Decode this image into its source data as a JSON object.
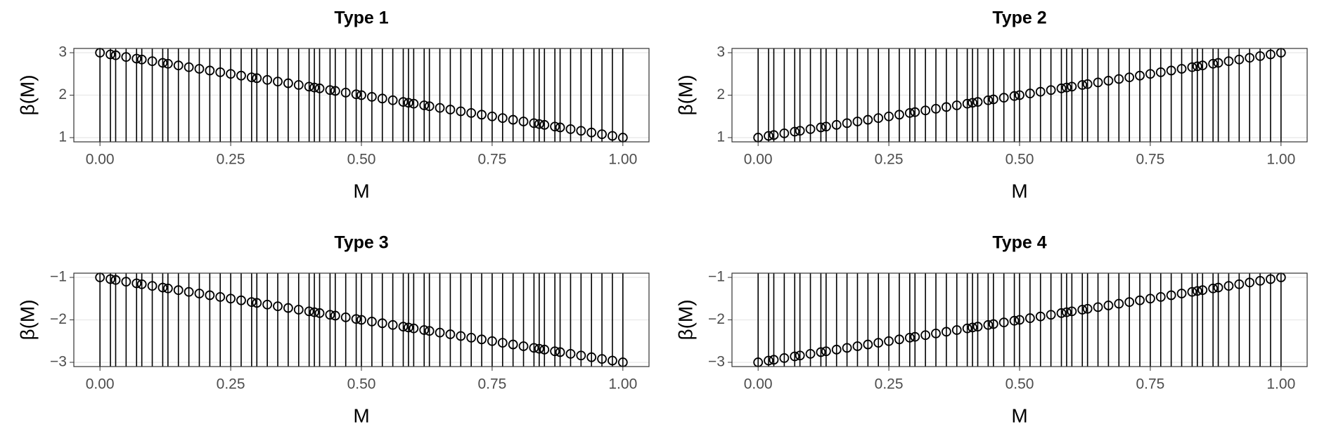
{
  "chart_data": [
    {
      "type": "scatter",
      "title": "Type 1",
      "x_label": "M",
      "y_label": "β(M)",
      "vlines": true,
      "grid": true,
      "color": "#000000",
      "xlim": [
        -0.05,
        1.05
      ],
      "ylim": [
        0.9,
        3.1
      ],
      "xticks": [
        {
          "value": 0,
          "label": "0.00"
        },
        {
          "value": 0.25,
          "label": "0.25"
        },
        {
          "value": 0.5,
          "label": "0.50"
        },
        {
          "value": 0.75,
          "label": "0.75"
        },
        {
          "value": 1,
          "label": "1.00"
        }
      ],
      "yticks": [
        1,
        2,
        3
      ],
      "x": [
        0.0,
        0.02,
        0.03,
        0.05,
        0.07,
        0.08,
        0.1,
        0.12,
        0.13,
        0.15,
        0.17,
        0.19,
        0.21,
        0.23,
        0.25,
        0.27,
        0.29,
        0.3,
        0.32,
        0.34,
        0.36,
        0.38,
        0.4,
        0.41,
        0.42,
        0.44,
        0.45,
        0.47,
        0.49,
        0.5,
        0.52,
        0.54,
        0.56,
        0.58,
        0.59,
        0.6,
        0.62,
        0.63,
        0.65,
        0.67,
        0.69,
        0.71,
        0.73,
        0.75,
        0.77,
        0.79,
        0.81,
        0.83,
        0.84,
        0.85,
        0.87,
        0.88,
        0.9,
        0.92,
        0.94,
        0.96,
        0.98,
        1.0
      ],
      "values": [
        3.0,
        2.96,
        2.94,
        2.9,
        2.86,
        2.84,
        2.8,
        2.76,
        2.74,
        2.7,
        2.66,
        2.62,
        2.58,
        2.54,
        2.5,
        2.46,
        2.42,
        2.4,
        2.36,
        2.32,
        2.28,
        2.24,
        2.2,
        2.18,
        2.16,
        2.12,
        2.1,
        2.06,
        2.02,
        2.0,
        1.96,
        1.92,
        1.88,
        1.84,
        1.82,
        1.8,
        1.76,
        1.74,
        1.7,
        1.66,
        1.62,
        1.58,
        1.54,
        1.5,
        1.46,
        1.42,
        1.38,
        1.34,
        1.32,
        1.3,
        1.26,
        1.24,
        1.2,
        1.16,
        1.12,
        1.08,
        1.04,
        1.0
      ]
    },
    {
      "type": "scatter",
      "title": "Type 2",
      "x_label": "M",
      "y_label": "β(M)",
      "vlines": true,
      "grid": true,
      "color": "#000000",
      "xlim": [
        -0.05,
        1.05
      ],
      "ylim": [
        0.9,
        3.1
      ],
      "xticks": [
        {
          "value": 0,
          "label": "0.00"
        },
        {
          "value": 0.25,
          "label": "0.25"
        },
        {
          "value": 0.5,
          "label": "0.50"
        },
        {
          "value": 0.75,
          "label": "0.75"
        },
        {
          "value": 1,
          "label": "1.00"
        }
      ],
      "yticks": [
        1,
        2,
        3
      ],
      "x": [
        0.0,
        0.02,
        0.03,
        0.05,
        0.07,
        0.08,
        0.1,
        0.12,
        0.13,
        0.15,
        0.17,
        0.19,
        0.21,
        0.23,
        0.25,
        0.27,
        0.29,
        0.3,
        0.32,
        0.34,
        0.36,
        0.38,
        0.4,
        0.41,
        0.42,
        0.44,
        0.45,
        0.47,
        0.49,
        0.5,
        0.52,
        0.54,
        0.56,
        0.58,
        0.59,
        0.6,
        0.62,
        0.63,
        0.65,
        0.67,
        0.69,
        0.71,
        0.73,
        0.75,
        0.77,
        0.79,
        0.81,
        0.83,
        0.84,
        0.85,
        0.87,
        0.88,
        0.9,
        0.92,
        0.94,
        0.96,
        0.98,
        1.0
      ],
      "values": [
        1.0,
        1.04,
        1.06,
        1.1,
        1.14,
        1.16,
        1.2,
        1.24,
        1.26,
        1.3,
        1.34,
        1.38,
        1.42,
        1.46,
        1.5,
        1.54,
        1.58,
        1.6,
        1.64,
        1.68,
        1.72,
        1.76,
        1.8,
        1.82,
        1.84,
        1.88,
        1.9,
        1.94,
        1.98,
        2.0,
        2.04,
        2.08,
        2.12,
        2.16,
        2.18,
        2.2,
        2.24,
        2.26,
        2.3,
        2.34,
        2.38,
        2.42,
        2.46,
        2.5,
        2.54,
        2.58,
        2.62,
        2.66,
        2.68,
        2.7,
        2.74,
        2.76,
        2.8,
        2.84,
        2.88,
        2.92,
        2.96,
        3.0
      ]
    },
    {
      "type": "scatter",
      "title": "Type 3",
      "x_label": "M",
      "y_label": "β(M)",
      "vlines": true,
      "grid": true,
      "color": "#000000",
      "xlim": [
        -0.05,
        1.05
      ],
      "ylim": [
        -3.1,
        -0.9
      ],
      "xticks": [
        {
          "value": 0,
          "label": "0.00"
        },
        {
          "value": 0.25,
          "label": "0.25"
        },
        {
          "value": 0.5,
          "label": "0.50"
        },
        {
          "value": 0.75,
          "label": "0.75"
        },
        {
          "value": 1,
          "label": "1.00"
        }
      ],
      "yticks": [
        {
          "value": -3,
          "label": "−3"
        },
        {
          "value": -2,
          "label": "−2"
        },
        {
          "value": -1,
          "label": "−1"
        }
      ],
      "x": [
        0.0,
        0.02,
        0.03,
        0.05,
        0.07,
        0.08,
        0.1,
        0.12,
        0.13,
        0.15,
        0.17,
        0.19,
        0.21,
        0.23,
        0.25,
        0.27,
        0.29,
        0.3,
        0.32,
        0.34,
        0.36,
        0.38,
        0.4,
        0.41,
        0.42,
        0.44,
        0.45,
        0.47,
        0.49,
        0.5,
        0.52,
        0.54,
        0.56,
        0.58,
        0.59,
        0.6,
        0.62,
        0.63,
        0.65,
        0.67,
        0.69,
        0.71,
        0.73,
        0.75,
        0.77,
        0.79,
        0.81,
        0.83,
        0.84,
        0.85,
        0.87,
        0.88,
        0.9,
        0.92,
        0.94,
        0.96,
        0.98,
        1.0
      ],
      "values": [
        -1.0,
        -1.04,
        -1.06,
        -1.1,
        -1.14,
        -1.16,
        -1.2,
        -1.24,
        -1.26,
        -1.3,
        -1.34,
        -1.38,
        -1.42,
        -1.46,
        -1.5,
        -1.54,
        -1.58,
        -1.6,
        -1.64,
        -1.68,
        -1.72,
        -1.76,
        -1.8,
        -1.82,
        -1.84,
        -1.88,
        -1.9,
        -1.94,
        -1.98,
        -2.0,
        -2.04,
        -2.08,
        -2.12,
        -2.16,
        -2.18,
        -2.2,
        -2.24,
        -2.26,
        -2.3,
        -2.34,
        -2.38,
        -2.42,
        -2.46,
        -2.5,
        -2.54,
        -2.58,
        -2.62,
        -2.66,
        -2.68,
        -2.7,
        -2.74,
        -2.76,
        -2.8,
        -2.84,
        -2.88,
        -2.92,
        -2.96,
        -3.0
      ]
    },
    {
      "type": "scatter",
      "title": "Type 4",
      "x_label": "M",
      "y_label": "β(M)",
      "vlines": true,
      "grid": true,
      "color": "#000000",
      "xlim": [
        -0.05,
        1.05
      ],
      "ylim": [
        -3.1,
        -0.9
      ],
      "xticks": [
        {
          "value": 0,
          "label": "0.00"
        },
        {
          "value": 0.25,
          "label": "0.25"
        },
        {
          "value": 0.5,
          "label": "0.50"
        },
        {
          "value": 0.75,
          "label": "0.75"
        },
        {
          "value": 1,
          "label": "1.00"
        }
      ],
      "yticks": [
        {
          "value": -3,
          "label": "−3"
        },
        {
          "value": -2,
          "label": "−2"
        },
        {
          "value": -1,
          "label": "−1"
        }
      ],
      "x": [
        0.0,
        0.02,
        0.03,
        0.05,
        0.07,
        0.08,
        0.1,
        0.12,
        0.13,
        0.15,
        0.17,
        0.19,
        0.21,
        0.23,
        0.25,
        0.27,
        0.29,
        0.3,
        0.32,
        0.34,
        0.36,
        0.38,
        0.4,
        0.41,
        0.42,
        0.44,
        0.45,
        0.47,
        0.49,
        0.5,
        0.52,
        0.54,
        0.56,
        0.58,
        0.59,
        0.6,
        0.62,
        0.63,
        0.65,
        0.67,
        0.69,
        0.71,
        0.73,
        0.75,
        0.77,
        0.79,
        0.81,
        0.83,
        0.84,
        0.85,
        0.87,
        0.88,
        0.9,
        0.92,
        0.94,
        0.96,
        0.98,
        1.0
      ],
      "values": [
        -3.0,
        -2.96,
        -2.94,
        -2.9,
        -2.86,
        -2.84,
        -2.8,
        -2.76,
        -2.74,
        -2.7,
        -2.66,
        -2.62,
        -2.58,
        -2.54,
        -2.5,
        -2.46,
        -2.42,
        -2.4,
        -2.36,
        -2.32,
        -2.28,
        -2.24,
        -2.2,
        -2.18,
        -2.16,
        -2.12,
        -2.1,
        -2.06,
        -2.02,
        -2.0,
        -1.96,
        -1.92,
        -1.88,
        -1.84,
        -1.82,
        -1.8,
        -1.76,
        -1.74,
        -1.7,
        -1.66,
        -1.62,
        -1.58,
        -1.54,
        -1.5,
        -1.46,
        -1.42,
        -1.38,
        -1.34,
        -1.32,
        -1.3,
        -1.26,
        -1.24,
        -1.2,
        -1.16,
        -1.12,
        -1.08,
        -1.04,
        -1.0
      ]
    }
  ]
}
